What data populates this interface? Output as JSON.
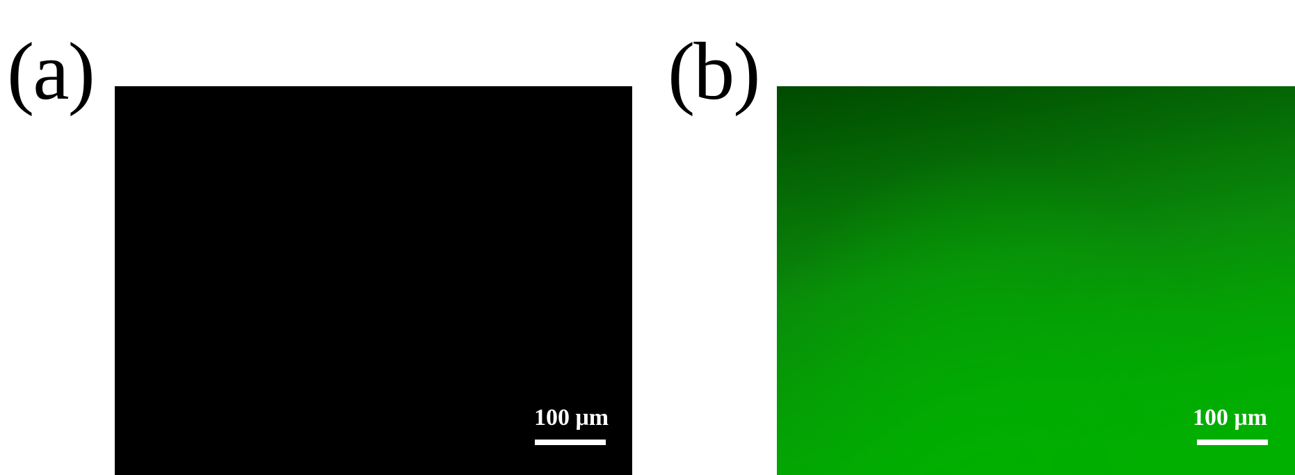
{
  "figure": {
    "panels": [
      {
        "label": "(a)",
        "scale_bar_label": "100 μm",
        "image_color": "#000000",
        "scale_bar_color": "#ffffff"
      },
      {
        "label": "(b)",
        "scale_bar_label": "100 μm",
        "image_color": "#0a8a0a",
        "gradient_dark": "#004a00",
        "gradient_bright": "#00b000",
        "scale_bar_color": "#ffffff"
      }
    ]
  }
}
